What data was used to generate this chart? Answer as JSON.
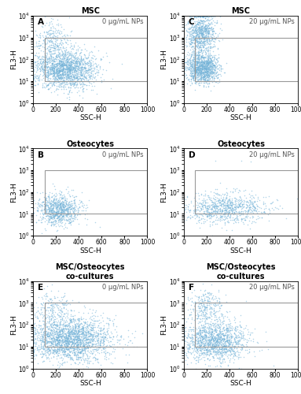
{
  "panels": [
    {
      "label": "A",
      "title": "MSC",
      "annotation": "0 μg/mL NPs",
      "row": 0,
      "col": 0,
      "main_n": 1800,
      "main_ssc_mu": 280,
      "main_ssc_sig": 140,
      "main_fl3_mu": 1.55,
      "main_fl3_sig": 0.45,
      "upper_n": 250,
      "upper_ssc_mu": 160,
      "upper_ssc_sig": 70,
      "upper_fl3_mu": 2.8,
      "upper_fl3_sig": 0.45,
      "gate_y": 10.0
    },
    {
      "label": "C",
      "title": "MSC",
      "annotation": "20 μg/mL NPs",
      "row": 0,
      "col": 1,
      "main_n": 1200,
      "main_ssc_mu": 160,
      "main_ssc_sig": 70,
      "main_fl3_mu": 1.6,
      "main_fl3_sig": 0.35,
      "upper_n": 800,
      "upper_ssc_mu": 150,
      "upper_ssc_sig": 65,
      "upper_fl3_mu": 3.2,
      "upper_fl3_sig": 0.45,
      "gate_y": 10.0
    },
    {
      "label": "B",
      "title": "Osteocytes",
      "annotation": "0 μg/mL NPs",
      "row": 1,
      "col": 0,
      "main_n": 900,
      "main_ssc_mu": 220,
      "main_ssc_sig": 90,
      "main_fl3_mu": 1.2,
      "main_fl3_sig": 0.35,
      "upper_n": 0,
      "upper_ssc_mu": 200,
      "upper_ssc_sig": 80,
      "upper_fl3_mu": 2.5,
      "upper_fl3_sig": 0.3,
      "gate_y": 10.0
    },
    {
      "label": "D",
      "title": "Osteocytes",
      "annotation": "20 μg/mL NPs",
      "row": 1,
      "col": 1,
      "main_n": 900,
      "main_ssc_mu": 350,
      "main_ssc_sig": 180,
      "main_fl3_mu": 1.25,
      "main_fl3_sig": 0.35,
      "upper_n": 3,
      "upper_ssc_mu": 400,
      "upper_ssc_sig": 100,
      "upper_fl3_mu": 3.5,
      "upper_fl3_sig": 0.2,
      "gate_y": 10.0
    },
    {
      "label": "E",
      "title": "MSC/Osteocytes\nco-cultures",
      "annotation": "0 μg/mL NPs",
      "row": 2,
      "col": 0,
      "main_n": 2200,
      "main_ssc_mu": 320,
      "main_ssc_sig": 180,
      "main_fl3_mu": 1.35,
      "main_fl3_sig": 0.5,
      "upper_n": 200,
      "upper_ssc_mu": 180,
      "upper_ssc_sig": 90,
      "upper_fl3_mu": 2.7,
      "upper_fl3_sig": 0.45,
      "gate_y": 10.0
    },
    {
      "label": "F",
      "title": "MSC/Osteocytes\nco-cultures",
      "annotation": "20 μg/mL NPs",
      "row": 2,
      "col": 1,
      "main_n": 1400,
      "main_ssc_mu": 270,
      "main_ssc_sig": 140,
      "main_fl3_mu": 1.25,
      "main_fl3_sig": 0.45,
      "upper_n": 280,
      "upper_ssc_mu": 200,
      "upper_ssc_sig": 80,
      "upper_fl3_mu": 2.85,
      "upper_fl3_sig": 0.4,
      "gate_y": 10.0
    }
  ],
  "dot_color": "#74b3d8",
  "dot_alpha": 0.55,
  "dot_size": 1.2,
  "gate_color": "#999999",
  "gate_lw": 0.8,
  "gate_x_start": 100,
  "gate_x_end": 1000,
  "gate_y_top": 1000,
  "xlim": [
    0,
    1000
  ],
  "ylim": [
    1.0,
    10000.0
  ],
  "xlabel": "SSC-H",
  "ylabel": "FL3-H",
  "tick_fontsize": 5.5,
  "label_fontsize": 6.5,
  "title_fontsize": 7,
  "annot_fontsize": 6,
  "panel_label_fontsize": 7.5
}
